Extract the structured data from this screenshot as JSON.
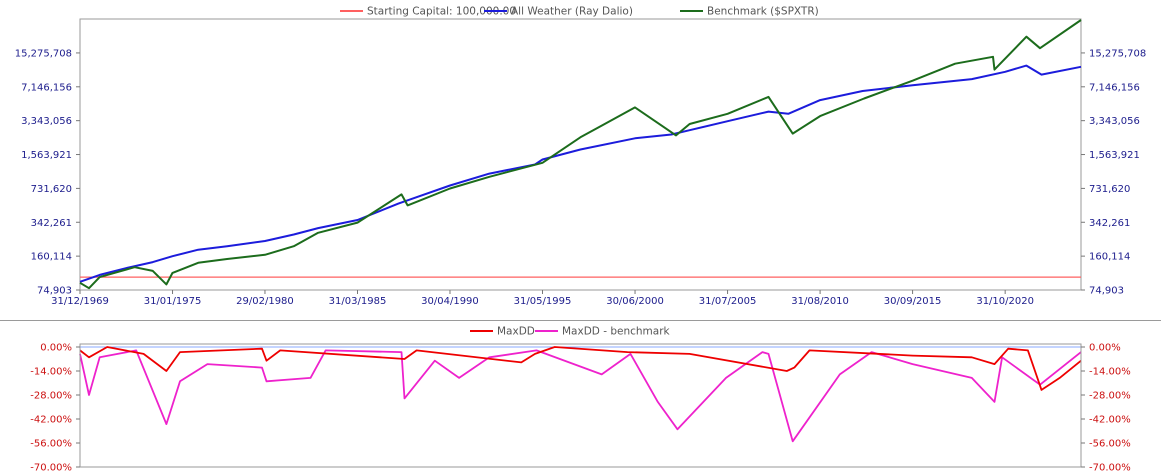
{
  "chart_data": [
    {
      "type": "line",
      "y_scale": "log",
      "x_axis": "date",
      "legend_position": "top-center",
      "grid": false,
      "ylim": [
        74903,
        32700000
      ],
      "xlim": [
        "1969-12-31",
        "2024-12-31"
      ],
      "x_tick_labels": [
        "31/12/1969",
        "31/01/1975",
        "29/02/1980",
        "31/03/1985",
        "30/04/1990",
        "31/05/1995",
        "30/06/2000",
        "31/07/2005",
        "31/08/2010",
        "30/09/2015",
        "31/10/2020"
      ],
      "x_tick_dates": [
        "1969-12-31",
        "1975-01-31",
        "1980-02-29",
        "1985-03-31",
        "1990-04-30",
        "1995-05-31",
        "2000-06-30",
        "2005-07-31",
        "2010-08-31",
        "2015-09-30",
        "2020-10-31"
      ],
      "y_tick_labels": [
        "15,275,708",
        "7,146,156",
        "3,343,056",
        "1,563,921",
        "731,620",
        "342,261",
        "160,114",
        "74,903"
      ],
      "y_tick_values": [
        15275708,
        7146156,
        3343056,
        1563921,
        731620,
        342261,
        160114,
        74903
      ],
      "series": [
        {
          "name": "Starting Capital: 100,000.00",
          "color": "#ff6060",
          "x": [
            "1969-12-31",
            "2024-12-31"
          ],
          "y": [
            100000,
            100000
          ]
        },
        {
          "name": "All Weather (Ray Dalio)",
          "color": "#1c1cdc",
          "x": [
            "1969-12-31",
            "1971-01-31",
            "1972-06-30",
            "1973-12-31",
            "1975-01-31",
            "1976-06-30",
            "1978-01-31",
            "1980-02-29",
            "1981-09-30",
            "1983-01-31",
            "1985-03-31",
            "1987-06-30",
            "1988-06-30",
            "1990-04-30",
            "1992-06-30",
            "1994-12-31",
            "1995-05-31",
            "1997-06-30",
            "2000-06-30",
            "2002-06-30",
            "2003-06-30",
            "2005-07-31",
            "2007-10-31",
            "2008-11-30",
            "2010-08-31",
            "2012-12-31",
            "2015-09-30",
            "2018-12-31",
            "2020-10-31",
            "2021-12-31",
            "2022-10-31",
            "2024-12-31"
          ],
          "y": [
            90000,
            105000,
            122000,
            140000,
            160000,
            185000,
            200000,
            225000,
            260000,
            300000,
            360000,
            520000,
            600000,
            780000,
            1020000,
            1250000,
            1400000,
            1750000,
            2250000,
            2450000,
            2700000,
            3300000,
            4100000,
            3900000,
            5300000,
            6500000,
            7400000,
            8500000,
            10000000,
            11500000,
            9400000,
            11200000
          ]
        },
        {
          "name": "Benchmark ($SPXTR)",
          "color": "#1c6c1c",
          "x": [
            "1969-12-31",
            "1970-06-30",
            "1971-01-31",
            "1972-12-31",
            "1973-12-31",
            "1974-09-30",
            "1975-01-31",
            "1976-06-30",
            "1978-01-31",
            "1980-02-29",
            "1981-09-30",
            "1983-01-31",
            "1985-03-31",
            "1987-08-31",
            "1987-12-31",
            "1990-04-30",
            "1992-06-30",
            "1995-05-31",
            "1997-06-30",
            "2000-06-30",
            "2002-09-30",
            "2003-06-30",
            "2005-07-31",
            "2007-10-31",
            "2009-02-28",
            "2010-08-31",
            "2013-01-31",
            "2015-09-30",
            "2018-01-31",
            "2020-02-29",
            "2020-03-31",
            "2021-12-31",
            "2022-09-30",
            "2024-12-31"
          ],
          "y": [
            88000,
            78000,
            100000,
            125000,
            115000,
            85000,
            110000,
            138000,
            150000,
            165000,
            200000,
            270000,
            340000,
            640000,
            500000,
            730000,
            950000,
            1300000,
            2300000,
            4500000,
            2400000,
            3100000,
            3900000,
            5700000,
            2500000,
            3700000,
            5500000,
            8200000,
            12000000,
            14000000,
            10500000,
            22000000,
            17000000,
            32000000
          ]
        }
      ]
    },
    {
      "type": "line",
      "legend_position": "top-center",
      "grid": false,
      "x_axis": "date",
      "ylim": [
        -70,
        0
      ],
      "y_unit": "%",
      "y_tick_labels": [
        "0.00%",
        "-14.00%",
        "-28.00%",
        "-42.00%",
        "-56.00%",
        "-70.00%"
      ],
      "y_tick_values": [
        0,
        -14,
        -28,
        -42,
        -56,
        -70
      ],
      "series": [
        {
          "name": "MaxDD",
          "color": "#ee0000",
          "x": [
            "1969-12-31",
            "1970-06-30",
            "1971-06-30",
            "1973-06-30",
            "1974-09-30",
            "1975-06-30",
            "1979-12-31",
            "1980-03-31",
            "1980-12-31",
            "1987-10-31",
            "1988-06-30",
            "1994-03-31",
            "1994-12-31",
            "1996-01-31",
            "2000-01-31",
            "2003-06-30",
            "2008-10-31",
            "2009-03-31",
            "2010-01-31",
            "2015-09-30",
            "2018-12-31",
            "2020-03-31",
            "2020-12-31",
            "2022-01-31",
            "2022-10-31",
            "2023-10-31",
            "2024-12-31"
          ],
          "y": [
            -2,
            -6,
            0,
            -4,
            -14,
            -3,
            -1,
            -8,
            -2,
            -7,
            -2,
            -9,
            -4,
            0,
            -3,
            -4,
            -14,
            -12,
            -2,
            -5,
            -6,
            -10,
            -1,
            -2,
            -25,
            -18,
            -8
          ]
        },
        {
          "name": "MaxDD - benchmark",
          "color": "#ee22cc",
          "x": [
            "1969-12-31",
            "1970-06-30",
            "1971-01-31",
            "1973-01-31",
            "1974-09-30",
            "1975-06-30",
            "1976-12-31",
            "1979-12-31",
            "1980-03-31",
            "1982-08-31",
            "1983-06-30",
            "1987-08-31",
            "1987-10-31",
            "1989-06-30",
            "1990-10-31",
            "1992-06-30",
            "1995-01-31",
            "1998-08-31",
            "2000-03-31",
            "2001-09-30",
            "2002-10-31",
            "2005-06-30",
            "2007-06-30",
            "2007-10-31",
            "2009-02-28",
            "2011-09-30",
            "2013-06-30",
            "2015-09-30",
            "2018-12-31",
            "2020-03-31",
            "2020-08-31",
            "2022-09-30",
            "2024-12-31"
          ],
          "y": [
            -4,
            -28,
            -6,
            -2,
            -45,
            -20,
            -10,
            -12,
            -20,
            -18,
            -2,
            -3,
            -30,
            -8,
            -18,
            -6,
            -2,
            -16,
            -4,
            -32,
            -48,
            -18,
            -3,
            -4,
            -55,
            -16,
            -3,
            -10,
            -18,
            -32,
            -6,
            -22,
            -3
          ]
        }
      ]
    }
  ]
}
